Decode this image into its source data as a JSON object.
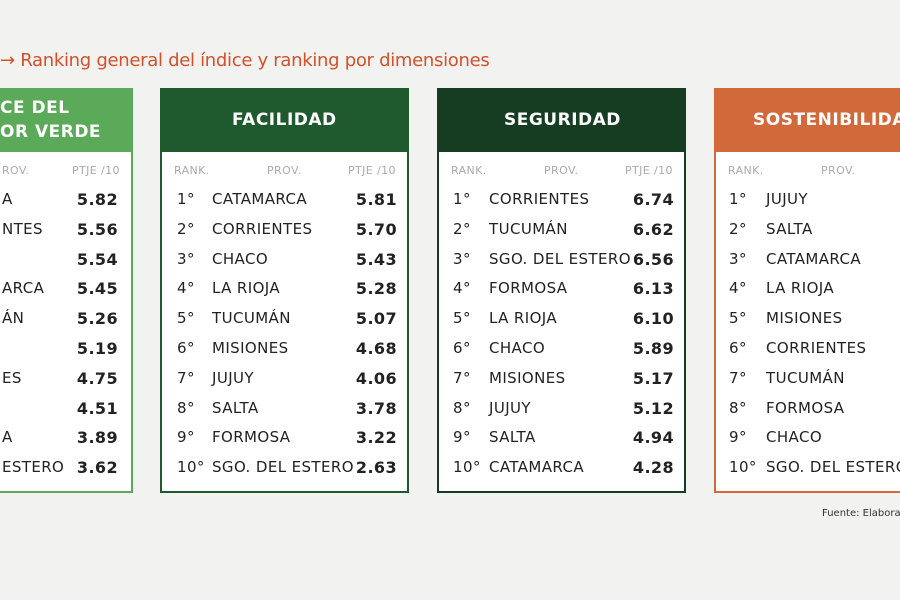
{
  "title": "→ Ranking general del índice y ranking por dimensiones",
  "panels": [
    {
      "header": [
        "CE DEL",
        "OR VERDE"
      ],
      "columns": {
        "prov": "ROV.",
        "score": "PTJE /10"
      },
      "rows": [
        {
          "prov": "A",
          "score": "5.82"
        },
        {
          "prov": "NTES",
          "score": "5.56"
        },
        {
          "score": "5.54"
        },
        {
          "prov": "ARCA",
          "score": "5.45"
        },
        {
          "prov": "ÁN",
          "score": "5.26"
        },
        {
          "score": "5.19"
        },
        {
          "prov": "ES",
          "score": "4.75"
        },
        {
          "score": "4.51"
        },
        {
          "prov": "A",
          "score": "3.89"
        },
        {
          "prov": "ESTERO",
          "score": "3.62"
        }
      ]
    },
    {
      "header": [
        "FACILIDAD"
      ],
      "columns": {
        "rank": "RANK.",
        "prov": "PROV.",
        "score": "PTJE /10"
      },
      "rows": [
        {
          "rank": "1°",
          "prov": "CATAMARCA",
          "score": "5.81"
        },
        {
          "rank": "2°",
          "prov": "CORRIENTES",
          "score": "5.70"
        },
        {
          "rank": "3°",
          "prov": "CHACO",
          "score": "5.43"
        },
        {
          "rank": "4°",
          "prov": "LA RIOJA",
          "score": "5.28"
        },
        {
          "rank": "5°",
          "prov": "TUCUMÁN",
          "score": "5.07"
        },
        {
          "rank": "6°",
          "prov": "MISIONES",
          "score": "4.68"
        },
        {
          "rank": "7°",
          "prov": "JUJUY",
          "score": "4.06"
        },
        {
          "rank": "8°",
          "prov": "SALTA",
          "score": "3.78"
        },
        {
          "rank": "9°",
          "prov": "FORMOSA",
          "score": "3.22"
        },
        {
          "rank": "10°",
          "prov": "SGO. DEL ESTERO",
          "score": "2.63"
        }
      ]
    },
    {
      "header": [
        "SEGURIDAD"
      ],
      "columns": {
        "rank": "RANK.",
        "prov": "PROV.",
        "score": "PTJE /10"
      },
      "rows": [
        {
          "rank": "1°",
          "prov": "CORRIENTES",
          "score": "6.74"
        },
        {
          "rank": "2°",
          "prov": "TUCUMÁN",
          "score": "6.62"
        },
        {
          "rank": "3°",
          "prov": "SGO. DEL ESTERO",
          "score": "6.56"
        },
        {
          "rank": "4°",
          "prov": "FORMOSA",
          "score": "6.13"
        },
        {
          "rank": "5°",
          "prov": "LA RIOJA",
          "score": "6.10"
        },
        {
          "rank": "6°",
          "prov": "CHACO",
          "score": "5.89"
        },
        {
          "rank": "7°",
          "prov": "MISIONES",
          "score": "5.17"
        },
        {
          "rank": "8°",
          "prov": "JUJUY",
          "score": "5.12"
        },
        {
          "rank": "9°",
          "prov": "SALTA",
          "score": "4.94"
        },
        {
          "rank": "10°",
          "prov": "CATAMARCA",
          "score": "4.28"
        }
      ]
    },
    {
      "header": [
        "SOSTENIBILIDA"
      ],
      "columns": {
        "rank": "RANK.",
        "prov": "PROV."
      },
      "rows": [
        {
          "rank": "1°",
          "prov": "JUJUY"
        },
        {
          "rank": "2°",
          "prov": "SALTA"
        },
        {
          "rank": "3°",
          "prov": "CATAMARCA"
        },
        {
          "rank": "4°",
          "prov": "LA RIOJA"
        },
        {
          "rank": "5°",
          "prov": "MISIONES"
        },
        {
          "rank": "6°",
          "prov": "CORRIENTES"
        },
        {
          "rank": "7°",
          "prov": "TUCUMÁN"
        },
        {
          "rank": "8°",
          "prov": "FORMOSA"
        },
        {
          "rank": "9°",
          "prov": "CHACO"
        },
        {
          "rank": "10°",
          "prov": "SGO. DEL ESTERO"
        }
      ]
    }
  ],
  "footer": "Fuente: Elabora"
}
